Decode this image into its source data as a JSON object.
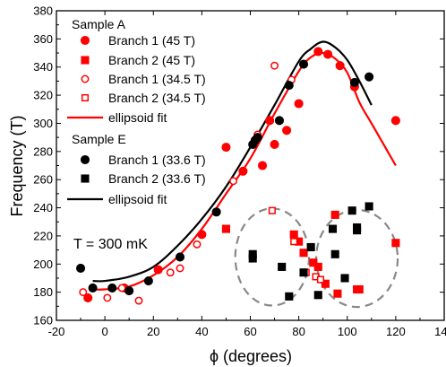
{
  "chart_data": {
    "type": "scatter",
    "xlabel": "ϕ (degrees)",
    "ylabel": "Frequency (T)",
    "xlim": [
      -20,
      140
    ],
    "ylim": [
      160,
      380
    ],
    "xticks": [
      -20,
      0,
      20,
      40,
      60,
      80,
      100,
      120,
      140
    ],
    "yticks": [
      160,
      180,
      200,
      220,
      240,
      260,
      280,
      300,
      320,
      340,
      360,
      380
    ],
    "annotation": "T = 300 mK",
    "legend_location": "top-left",
    "legend": {
      "group_a": "Sample A",
      "group_e": "Sample E",
      "entries": [
        {
          "id": "a_b1_45",
          "label": "Branch 1 (45 T)",
          "marker": "circle",
          "filled": true,
          "color": "#ff0000"
        },
        {
          "id": "a_b2_45",
          "label": "Branch 2 (45 T)",
          "marker": "square",
          "filled": true,
          "color": "#ff0000"
        },
        {
          "id": "a_b1_345",
          "label": "Branch 1 (34.5 T)",
          "marker": "circle",
          "filled": false,
          "color": "#ff0000"
        },
        {
          "id": "a_b2_345",
          "label": "Branch 2 (34.5 T)",
          "marker": "square",
          "filled": false,
          "color": "#ff0000"
        },
        {
          "id": "a_fit",
          "label": "ellipsoid fit",
          "marker": "line",
          "color": "#ff0000"
        },
        {
          "id": "e_b1_336",
          "label": "Branch 1 (33.6 T)",
          "marker": "circle",
          "filled": true,
          "color": "#000000"
        },
        {
          "id": "e_b2_336",
          "label": "Branch 2 (33.6 T)",
          "marker": "square",
          "filled": true,
          "color": "#000000"
        },
        {
          "id": "e_fit",
          "label": "ellipsoid fit",
          "marker": "line",
          "color": "#000000"
        }
      ]
    },
    "series": [
      {
        "id": "a_b1_45",
        "points": [
          [
            -7,
            176
          ],
          [
            8,
            183
          ],
          [
            22,
            196
          ],
          [
            40,
            221
          ],
          [
            50,
            283
          ],
          [
            57,
            266
          ],
          [
            65,
            270
          ],
          [
            68,
            302
          ],
          [
            70,
            285
          ],
          [
            75,
            295
          ],
          [
            80,
            314
          ],
          [
            88,
            351
          ],
          [
            92,
            349
          ],
          [
            97,
            341
          ],
          [
            103,
            326
          ],
          [
            120,
            302
          ]
        ]
      },
      {
        "id": "a_b2_45",
        "points": [
          [
            50,
            225
          ],
          [
            78,
            221
          ],
          [
            80,
            216
          ],
          [
            82,
            208
          ],
          [
            86,
            201
          ],
          [
            88,
            198
          ],
          [
            91,
            186
          ],
          [
            95,
            235
          ],
          [
            96,
            179
          ],
          [
            104,
            182
          ],
          [
            105,
            182
          ],
          [
            120,
            215
          ]
        ]
      },
      {
        "id": "a_b1_345",
        "points": [
          [
            -9,
            180
          ],
          [
            1,
            176
          ],
          [
            7,
            183
          ],
          [
            14,
            174
          ],
          [
            27,
            194
          ],
          [
            31,
            197
          ],
          [
            38,
            214
          ],
          [
            53,
            259
          ],
          [
            63,
            292
          ],
          [
            70,
            341
          ],
          [
            77,
            331
          ]
        ]
      },
      {
        "id": "a_b2_345",
        "points": [
          [
            69,
            238
          ],
          [
            78,
            216
          ],
          [
            83,
            194
          ],
          [
            87,
            191
          ],
          [
            89,
            189
          ]
        ]
      },
      {
        "id": "e_b1_336",
        "points": [
          [
            -10,
            197
          ],
          [
            -5,
            183
          ],
          [
            3,
            183
          ],
          [
            10,
            181
          ],
          [
            18,
            188
          ],
          [
            31,
            205
          ],
          [
            46,
            237
          ],
          [
            61,
            285
          ],
          [
            62,
            288
          ],
          [
            63,
            290
          ],
          [
            72,
            302
          ],
          [
            76,
            327
          ],
          [
            82,
            342
          ],
          [
            103,
            329
          ],
          [
            109,
            333
          ]
        ]
      },
      {
        "id": "e_b2_336",
        "points": [
          [
            61,
            207
          ],
          [
            61,
            204
          ],
          [
            73,
            198
          ],
          [
            76,
            177
          ],
          [
            82,
            194
          ],
          [
            85,
            212
          ],
          [
            88,
            178
          ],
          [
            94,
            225
          ],
          [
            95,
            207
          ],
          [
            99,
            190
          ],
          [
            102,
            238
          ],
          [
            104,
            226
          ],
          [
            104,
            224
          ],
          [
            109,
            241
          ]
        ]
      }
    ],
    "fits": [
      {
        "id": "a_fit",
        "color": "#ff0000",
        "points": [
          [
            -5,
            182
          ],
          [
            0,
            182
          ],
          [
            10,
            184
          ],
          [
            20,
            192
          ],
          [
            30,
            205
          ],
          [
            40,
            225
          ],
          [
            50,
            250
          ],
          [
            60,
            275
          ],
          [
            70,
            307
          ],
          [
            80,
            337
          ],
          [
            85,
            347
          ],
          [
            90,
            350
          ],
          [
            95,
            346
          ],
          [
            100,
            336
          ],
          [
            105,
            315
          ],
          [
            110,
            300
          ],
          [
            115,
            285
          ],
          [
            120,
            270
          ]
        ]
      },
      {
        "id": "e_fit",
        "color": "#000000",
        "points": [
          [
            -5,
            188
          ],
          [
            0,
            188
          ],
          [
            10,
            191
          ],
          [
            20,
            198
          ],
          [
            30,
            213
          ],
          [
            40,
            232
          ],
          [
            50,
            255
          ],
          [
            60,
            283
          ],
          [
            70,
            313
          ],
          [
            80,
            344
          ],
          [
            85,
            353
          ],
          [
            90,
            358
          ],
          [
            95,
            354
          ],
          [
            100,
            345
          ],
          [
            105,
            330
          ],
          [
            110,
            313
          ]
        ]
      }
    ],
    "guide_ellipses": [
      {
        "cx": 69,
        "cy": 205,
        "rx": 15.2,
        "ry": 34.5
      },
      {
        "cx": 104,
        "cy": 204,
        "rx": 16.8,
        "ry": 34.5
      }
    ]
  }
}
